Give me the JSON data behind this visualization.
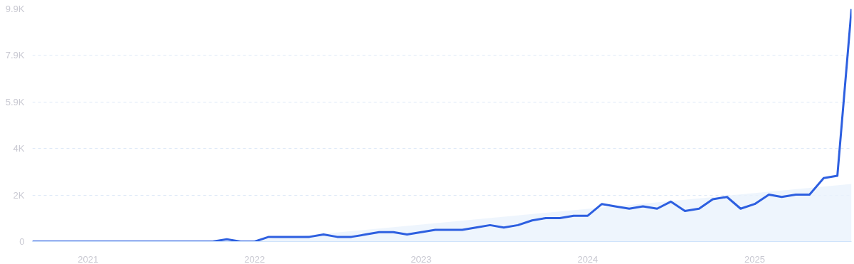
{
  "chart_data": {
    "type": "line",
    "x": [
      "2020-09",
      "2020-10",
      "2020-11",
      "2020-12",
      "2021-01",
      "2021-02",
      "2021-03",
      "2021-04",
      "2021-05",
      "2021-06",
      "2021-07",
      "2021-08",
      "2021-09",
      "2021-10",
      "2021-11",
      "2021-12",
      "2022-01",
      "2022-02",
      "2022-03",
      "2022-04",
      "2022-05",
      "2022-06",
      "2022-07",
      "2022-08",
      "2022-09",
      "2022-10",
      "2022-11",
      "2022-12",
      "2023-01",
      "2023-02",
      "2023-03",
      "2023-04",
      "2023-05",
      "2023-06",
      "2023-07",
      "2023-08",
      "2023-09",
      "2023-10",
      "2023-11",
      "2023-12",
      "2024-01",
      "2024-02",
      "2024-03",
      "2024-04",
      "2024-05",
      "2024-06",
      "2024-07",
      "2024-08",
      "2024-09",
      "2024-10",
      "2024-11",
      "2024-12",
      "2025-01",
      "2025-02",
      "2025-03",
      "2025-04",
      "2025-05",
      "2025-06",
      "2025-07",
      "2025-08"
    ],
    "series": [
      {
        "type": "area",
        "color": "#eaf2fd",
        "x": [
          "2021-12",
          "2025-08"
        ],
        "values": [
          0,
          2450
        ]
      },
      {
        "color": "#2d5fe0",
        "values": [
          0,
          0,
          0,
          0,
          0,
          0,
          0,
          0,
          0,
          0,
          0,
          0,
          0,
          0,
          100,
          0,
          0,
          200,
          200,
          200,
          200,
          300,
          200,
          200,
          300,
          400,
          400,
          300,
          400,
          500,
          500,
          500,
          600,
          700,
          600,
          700,
          900,
          1000,
          1000,
          1100,
          1100,
          1600,
          1500,
          1400,
          1500,
          1400,
          1700,
          1300,
          1400,
          1800,
          1900,
          1400,
          1600,
          2000,
          1900,
          2000,
          2000,
          2700,
          2800,
          9900
        ]
      }
    ],
    "xlim": [
      "2020-09",
      "2025-08"
    ],
    "xticks": [
      {
        "value": "2021",
        "label": "2021"
      },
      {
        "value": "2022",
        "label": "2022"
      },
      {
        "value": "2023",
        "label": "2023"
      },
      {
        "value": "2024",
        "label": "2024"
      },
      {
        "value": "2025",
        "label": "2025"
      }
    ],
    "ylim": [
      0,
      9900
    ],
    "yticks": [
      0,
      {
        "value": 1980,
        "label": "2K"
      },
      {
        "value": 3960,
        "label": "4K"
      },
      {
        "value": 5940,
        "label": "5.9K"
      },
      {
        "value": 7920,
        "label": "7.9K"
      },
      {
        "value": 9900,
        "label": "9.9K"
      }
    ],
    "grid": "y",
    "marker": "none",
    "line_style": "solid"
  }
}
